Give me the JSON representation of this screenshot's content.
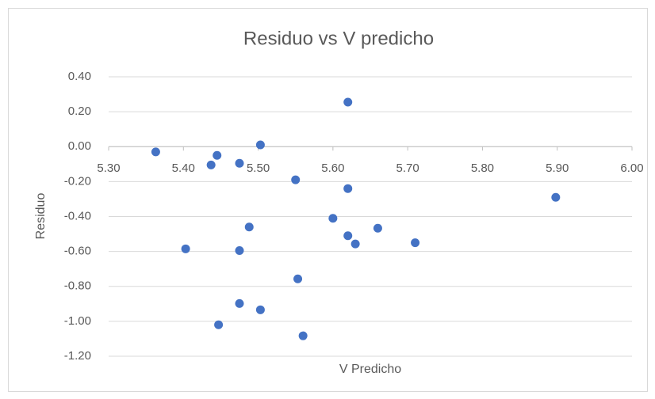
{
  "chart_data": {
    "type": "scatter",
    "title": "Residuo vs V predicho",
    "x_label": "V Predicho",
    "y_label": "Residuo",
    "series": [
      {
        "color": "#4472c4",
        "x": [
          5.363,
          5.445,
          5.437,
          5.475,
          5.503,
          5.55,
          5.62,
          5.62,
          5.6,
          5.488,
          5.403,
          5.475,
          5.62,
          5.63,
          5.66,
          5.71,
          5.898,
          5.553,
          5.475,
          5.503,
          5.447,
          5.56
        ],
        "values": [
          -0.03,
          -0.05,
          -0.105,
          -0.095,
          0.01,
          -0.19,
          0.255,
          -0.24,
          -0.41,
          -0.46,
          -0.585,
          -0.595,
          -0.51,
          -0.557,
          -0.467,
          -0.55,
          -0.29,
          -0.757,
          -0.898,
          -0.934,
          -1.02,
          -1.083
        ]
      }
    ],
    "xlim": [
      5.3,
      6.0
    ],
    "xticks": [
      {
        "value": 5.3,
        "label": "5.30"
      },
      {
        "value": 5.4,
        "label": "5.40"
      },
      {
        "value": 5.5,
        "label": "5.50"
      },
      {
        "value": 5.6,
        "label": "5.60"
      },
      {
        "value": 5.7,
        "label": "5.70"
      },
      {
        "value": 5.8,
        "label": "5.80"
      },
      {
        "value": 5.9,
        "label": "5.90"
      },
      {
        "value": 6.0,
        "label": "6.00"
      }
    ],
    "ylim": [
      -1.2,
      0.4
    ],
    "yticks": [
      {
        "value": 0.4,
        "label": "0.40"
      },
      {
        "value": 0.2,
        "label": "0.20"
      },
      {
        "value": 0,
        "label": "0.00"
      },
      {
        "value": -0.2,
        "label": "-0.20"
      },
      {
        "value": -0.4,
        "label": "-0.40"
      },
      {
        "value": -0.6,
        "label": "-0.60"
      },
      {
        "value": -0.8,
        "label": "-0.80"
      },
      {
        "value": -1.0,
        "label": "-1.00"
      },
      {
        "value": -1.2,
        "label": "-1.20"
      }
    ],
    "grid": true
  }
}
